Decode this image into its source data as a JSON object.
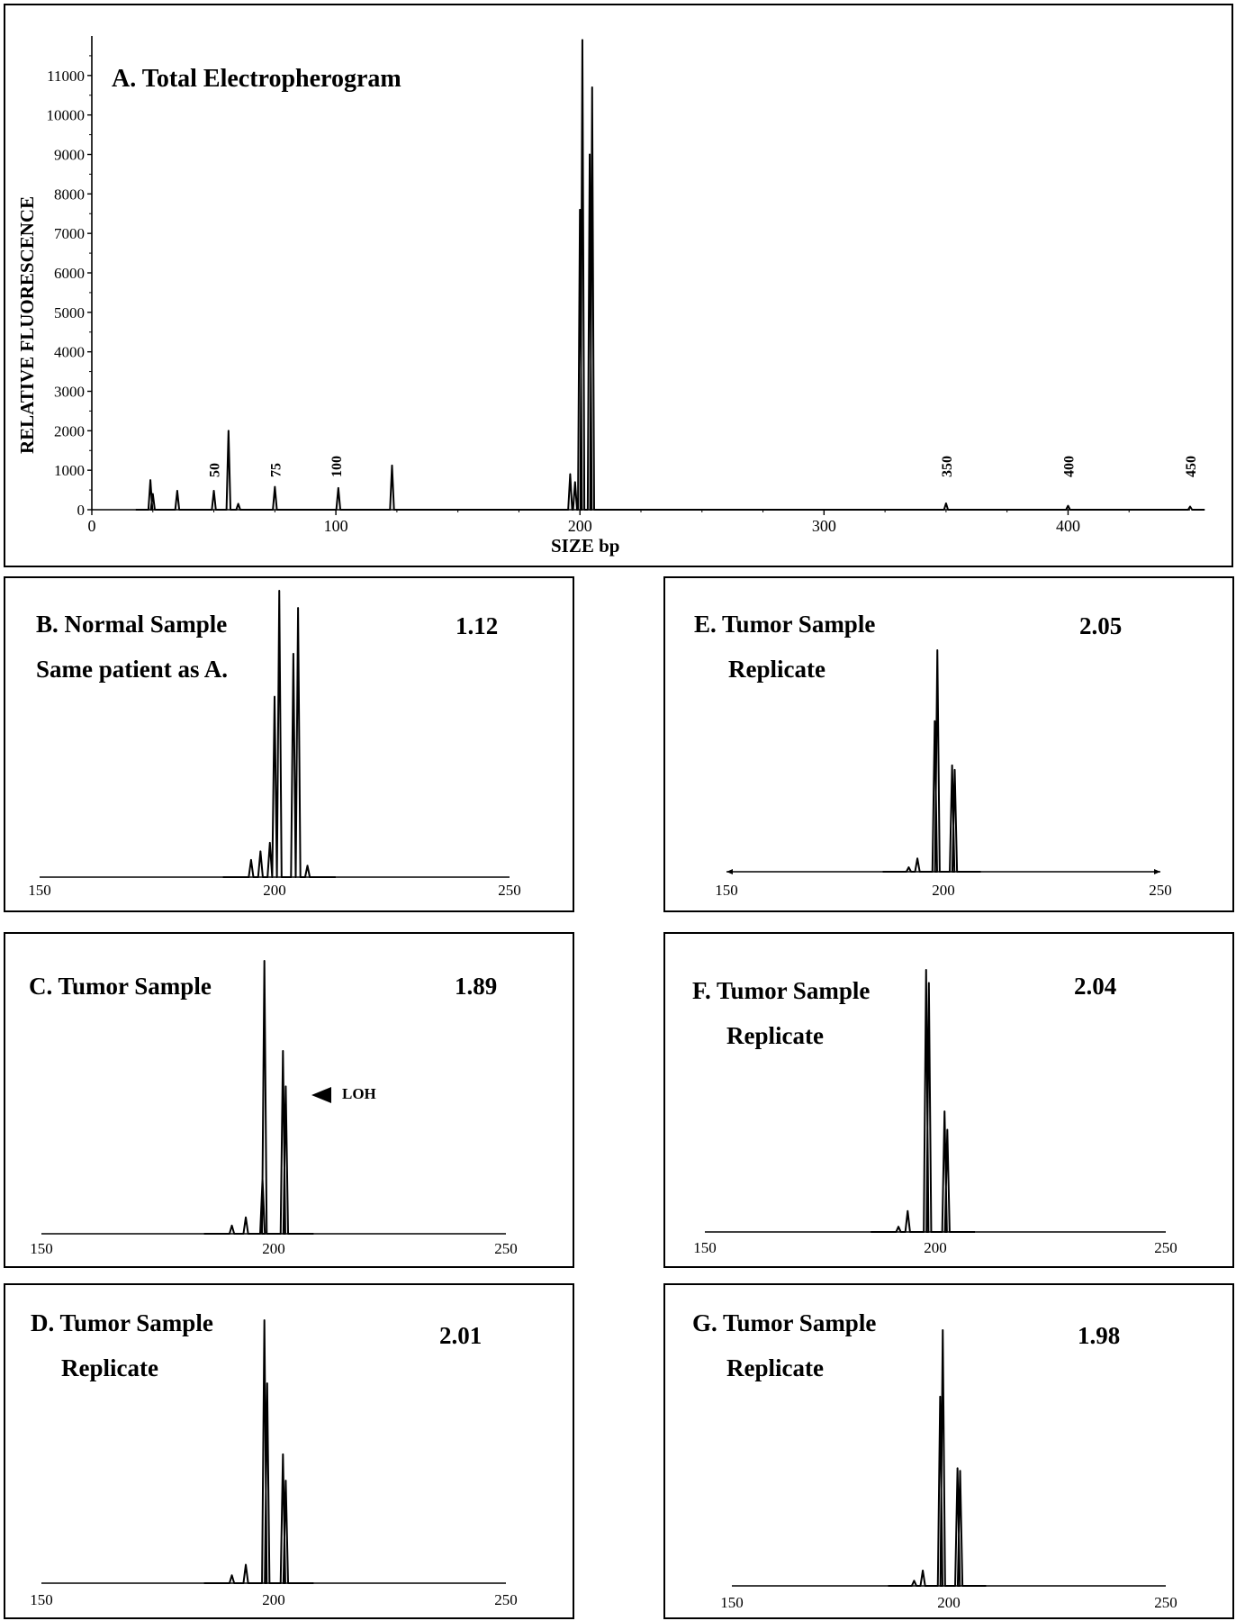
{
  "chart_data": [
    {
      "id": "A",
      "type": "line",
      "title": "A. Total Electropherogram",
      "xlabel": "SIZE bp",
      "ylabel": "RELATIVE FLUORESCENCE",
      "xlim": [
        0,
        450
      ],
      "ylim": [
        0,
        11000
      ],
      "xticks": [
        0,
        100,
        200,
        300,
        400
      ],
      "yticks": [
        0,
        1000,
        2000,
        3000,
        4000,
        5000,
        6000,
        7000,
        8000,
        9000,
        10000,
        11000
      ],
      "size_markers": [
        50,
        75,
        100,
        350,
        400,
        450
      ],
      "series": [
        {
          "peaks": [
            {
              "x": 24,
              "y": 750
            },
            {
              "x": 25,
              "y": 400
            },
            {
              "x": 35,
              "y": 480
            },
            {
              "x": 50,
              "y": 480
            },
            {
              "x": 56,
              "y": 2000
            },
            {
              "x": 60,
              "y": 150
            },
            {
              "x": 75,
              "y": 580
            },
            {
              "x": 101,
              "y": 550
            },
            {
              "x": 123,
              "y": 1120
            },
            {
              "x": 196,
              "y": 900
            },
            {
              "x": 198,
              "y": 700
            },
            {
              "x": 200,
              "y": 7600
            },
            {
              "x": 201,
              "y": 11900
            },
            {
              "x": 204,
              "y": 9000
            },
            {
              "x": 205,
              "y": 10700
            },
            {
              "x": 350,
              "y": 160
            },
            {
              "x": 400,
              "y": 100
            },
            {
              "x": 450,
              "y": 80
            }
          ]
        }
      ]
    },
    {
      "id": "B",
      "type": "line",
      "title": "B. Normal Sample",
      "subtitle": "Same patient as A.",
      "value": "1.12",
      "xlim": [
        150,
        250
      ],
      "xticks": [
        150,
        200,
        250
      ],
      "ymax": 1,
      "series": [
        {
          "peaks": [
            {
              "x": 195,
              "y": 0.06
            },
            {
              "x": 197,
              "y": 0.09
            },
            {
              "x": 199,
              "y": 0.12
            },
            {
              "x": 200,
              "y": 0.63
            },
            {
              "x": 201,
              "y": 1.0
            },
            {
              "x": 204,
              "y": 0.78
            },
            {
              "x": 205,
              "y": 0.94
            },
            {
              "x": 207,
              "y": 0.04
            }
          ]
        }
      ]
    },
    {
      "id": "C",
      "type": "line",
      "title": "C. Tumor Sample",
      "value": "1.89",
      "annotation": "LOH",
      "xlim": [
        150,
        250
      ],
      "xticks": [
        150,
        200,
        250
      ],
      "ymax": 1,
      "series": [
        {
          "peaks": [
            {
              "x": 191,
              "y": 0.03
            },
            {
              "x": 194,
              "y": 0.06
            },
            {
              "x": 198,
              "y": 1.0
            },
            {
              "x": 197.6,
              "y": 0.2
            },
            {
              "x": 202,
              "y": 0.67
            },
            {
              "x": 202.6,
              "y": 0.54
            }
          ]
        }
      ]
    },
    {
      "id": "D",
      "type": "line",
      "title": "D. Tumor Sample",
      "subtitle": "Replicate",
      "value": "2.01",
      "xlim": [
        150,
        250
      ],
      "xticks": [
        150,
        200,
        250
      ],
      "ymax": 1,
      "series": [
        {
          "peaks": [
            {
              "x": 191,
              "y": 0.03
            },
            {
              "x": 194,
              "y": 0.07
            },
            {
              "x": 198,
              "y": 1.0
            },
            {
              "x": 198.6,
              "y": 0.76
            },
            {
              "x": 202,
              "y": 0.49
            },
            {
              "x": 202.6,
              "y": 0.39
            }
          ]
        }
      ]
    },
    {
      "id": "E",
      "type": "line",
      "title": "E. Tumor Sample",
      "subtitle": "Replicate",
      "value": "2.05",
      "xlim": [
        150,
        250
      ],
      "xticks": [
        150,
        200,
        250
      ],
      "ymax": 1,
      "series": [
        {
          "peaks": [
            {
              "x": 192,
              "y": 0.02
            },
            {
              "x": 194,
              "y": 0.06
            },
            {
              "x": 198,
              "y": 0.68
            },
            {
              "x": 198.6,
              "y": 1.0
            },
            {
              "x": 202,
              "y": 0.48
            },
            {
              "x": 202.6,
              "y": 0.46
            }
          ]
        }
      ]
    },
    {
      "id": "F",
      "type": "line",
      "title": "F. Tumor Sample",
      "subtitle": "Replicate",
      "value": "2.04",
      "xlim": [
        150,
        250
      ],
      "xticks": [
        150,
        200,
        250
      ],
      "ymax": 1,
      "series": [
        {
          "peaks": [
            {
              "x": 192,
              "y": 0.02
            },
            {
              "x": 194,
              "y": 0.08
            },
            {
              "x": 198,
              "y": 1.0
            },
            {
              "x": 198.6,
              "y": 0.95
            },
            {
              "x": 202,
              "y": 0.46
            },
            {
              "x": 202.6,
              "y": 0.39
            }
          ]
        }
      ]
    },
    {
      "id": "G",
      "type": "line",
      "title": "G. Tumor Sample",
      "subtitle": "Replicate",
      "value": "1.98",
      "xlim": [
        150,
        250
      ],
      "xticks": [
        150,
        200,
        250
      ],
      "ymax": 1,
      "series": [
        {
          "peaks": [
            {
              "x": 192,
              "y": 0.02
            },
            {
              "x": 194,
              "y": 0.06
            },
            {
              "x": 198,
              "y": 0.74
            },
            {
              "x": 198.6,
              "y": 1.0
            },
            {
              "x": 202,
              "y": 0.46
            },
            {
              "x": 202.6,
              "y": 0.45
            }
          ]
        }
      ]
    }
  ]
}
